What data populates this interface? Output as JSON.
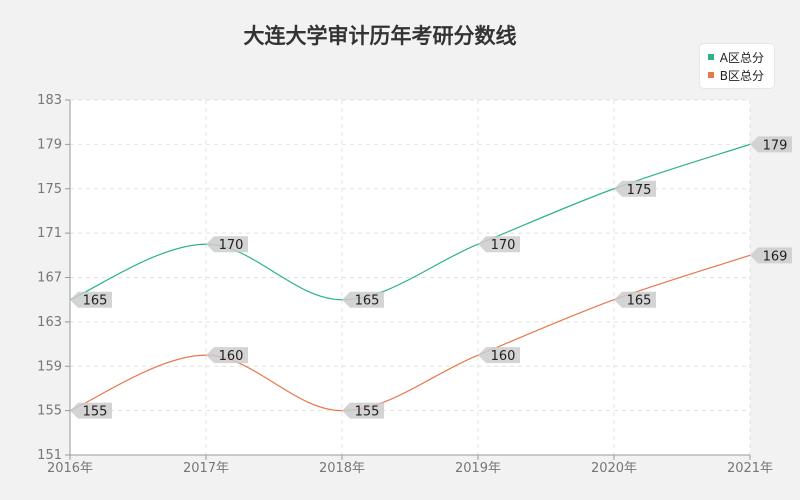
{
  "chart_data": {
    "type": "line",
    "title": "大连大学审计历年考研分数线",
    "categories": [
      "2016年",
      "2017年",
      "2018年",
      "2019年",
      "2020年",
      "2021年"
    ],
    "series": [
      {
        "name": "A区总分",
        "values": [
          165,
          170,
          165,
          170,
          175,
          179
        ],
        "color": "#2bb38a"
      },
      {
        "name": "B区总分",
        "values": [
          155,
          160,
          155,
          160,
          165,
          169
        ],
        "color": "#e8774a"
      }
    ],
    "ylim": [
      151,
      183
    ],
    "yticks": [
      "151",
      "155",
      "159",
      "163",
      "167",
      "171",
      "175",
      "179",
      "183"
    ],
    "grid": true,
    "legend_position": "top-right",
    "smooth": true
  }
}
